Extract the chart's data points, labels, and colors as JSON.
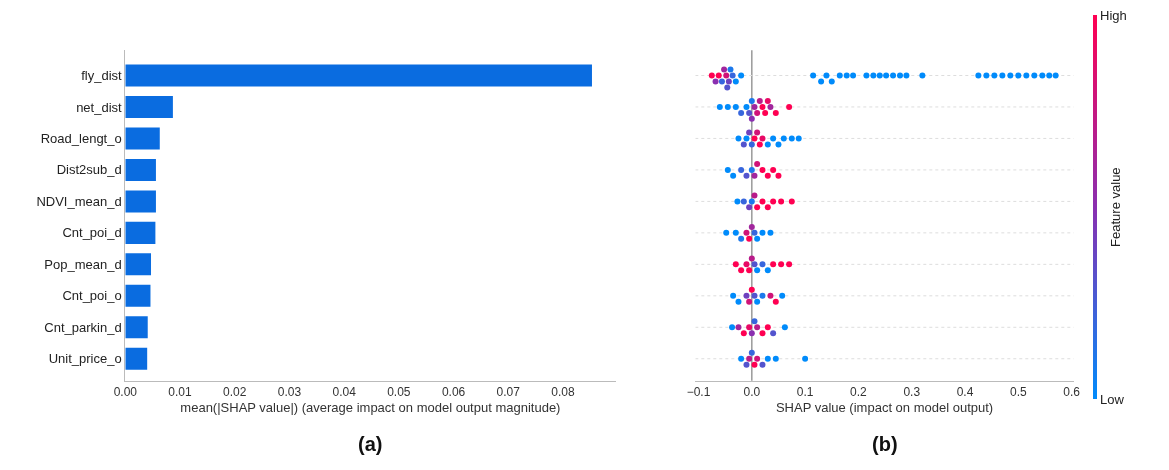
{
  "chart_data": [
    {
      "type": "bar",
      "orientation": "horizontal",
      "color": "#0a6ce0",
      "xlabel": "mean(|SHAP value|) (average impact on model output magnitude)",
      "annotations": [
        "(a)"
      ],
      "categories": [
        "fly_dist",
        "net_dist",
        "Road_lengt_o",
        "Dist2sub_d",
        "NDVI_mean_d",
        "Cnt_poi_d",
        "Pop_mean_d",
        "Cnt_poi_o",
        "Cnt_parkin_d",
        "Unit_price_o"
      ],
      "values": [
        0.0853,
        0.0087,
        0.0063,
        0.0056,
        0.0056,
        0.0055,
        0.0047,
        0.0046,
        0.0041,
        0.004
      ],
      "xlim": [
        0,
        0.0896
      ],
      "xticks": [
        {
          "value": 0,
          "label": "0.00"
        },
        {
          "value": 0.01,
          "label": "0.01"
        },
        {
          "value": 0.02,
          "label": "0.02"
        },
        {
          "value": 0.03,
          "label": "0.03"
        },
        {
          "value": 0.04,
          "label": "0.04"
        },
        {
          "value": 0.05,
          "label": "0.05"
        },
        {
          "value": 0.06,
          "label": "0.06"
        },
        {
          "value": 0.07,
          "label": "0.07"
        },
        {
          "value": 0.08,
          "label": "0.08"
        }
      ]
    },
    {
      "type": "scatter",
      "orientation": "horizontal",
      "xlabel": "SHAP value (impact on model output)",
      "annotations": [
        "(b)"
      ],
      "tick_labels": "x",
      "grid": "y",
      "clabel": "Feature value",
      "categories": [
        null,
        null,
        null,
        null,
        null,
        null,
        null,
        null,
        null,
        null
      ],
      "xlim": [
        -0.106,
        0.604
      ],
      "xticks": [
        {
          "value": -0.1,
          "label": "−0.1"
        },
        {
          "value": 0,
          "label": "0.0"
        },
        {
          "value": 0.1,
          "label": "0.1"
        },
        {
          "value": 0.2,
          "label": "0.2"
        },
        {
          "value": 0.3,
          "label": "0.3"
        },
        {
          "value": 0.4,
          "label": "0.4"
        },
        {
          "value": 0.5,
          "label": "0.5"
        },
        {
          "value": 0.6,
          "label": "0.6"
        }
      ],
      "clim": [
        0,
        1
      ],
      "cticks": [
        {
          "value": 0,
          "label": "Low"
        },
        {
          "value": 1,
          "label": "High"
        }
      ],
      "ref_lines": [
        {
          "axis": "x",
          "value": 0,
          "color": "#999999"
        }
      ],
      "series": [
        {
          "values": [
            -0.075,
            -0.06,
            -0.025,
            -0.045,
            -0.027,
            -0.048,
            -0.03,
            -0.035,
            -0.037,
            -0.02
          ],
          "colors": [
            "#ff0052",
            "#008bfb",
            "#008bfb",
            "#008bfb",
            "#008bfb",
            "#008bfb",
            "#ff0052",
            "#008bfb",
            "#008bfb",
            "#008bfb"
          ]
        },
        {
          "values": [
            -0.068,
            -0.045,
            -0.015,
            -0.035,
            -0.015,
            -0.03,
            -0.02,
            -0.025,
            -0.025,
            -0.01
          ],
          "colors": [
            "#8a2fb0",
            "#008bfb",
            "#5354ce",
            "#008bfb",
            "#3766dd",
            "#008bfb",
            "#ff0052",
            "#008bfb",
            "#a1269d",
            "#5354ce"
          ]
        },
        {
          "values": [
            -0.062,
            -0.03,
            -0.01,
            -0.02,
            -0.005,
            -0.02,
            -0.01,
            -0.01,
            -0.015,
            -0.005
          ],
          "colors": [
            "#ff0052",
            "#008bfb",
            "#008bfb",
            "#3766dd",
            "#6e41bf",
            "#1c79ec",
            "#e80965",
            "#6e41bf",
            "#ff0052",
            "#b91c8a"
          ]
        },
        {
          "values": [
            -0.056,
            -0.02,
            -0.005,
            -0.01,
            0,
            -0.01,
            -0.005,
            -0.005,
            -0.005,
            0
          ],
          "colors": [
            "#3766dd",
            "#3766dd",
            "#6e41bf",
            "#5354ce",
            "#1c79ec",
            "#d01378",
            "#ff0052",
            "#d01378",
            "#e80965",
            "#3766dd"
          ]
        },
        {
          "values": [
            -0.052,
            -0.01,
            0,
            0,
            0.005,
            -0.005,
            0,
            0,
            0,
            0.005
          ],
          "colors": [
            "#a1269d",
            "#008bfb",
            "#3766dd",
            "#1c79ec",
            "#b91c8a",
            "#ff0052",
            "#b91c8a",
            "#ff0052",
            "#8a2fb0",
            "#ff0052"
          ]
        },
        {
          "values": [
            -0.048,
            -0.005,
            0.005,
            0.005,
            0.01,
            0,
            0.005,
            0.005,
            0.005,
            0.01
          ],
          "colors": [
            "#d01378",
            "#5354ce",
            "#ff0052",
            "#a1269d",
            "#ff0052",
            "#a1269d",
            "#5354ce",
            "#5354ce",
            "#3766dd",
            "#d01378"
          ]
        },
        {
          "values": [
            -0.046,
            0,
            0.01,
            0.01,
            0.02,
            0.005,
            0.01,
            0.01,
            0.01,
            0.02
          ],
          "colors": [
            "#5354ce",
            "#1c79ec",
            "#d01378",
            "#d01378",
            "#ff0052",
            "#3766dd",
            "#008bfb",
            "#008bfb",
            "#b91c8a",
            "#5354ce"
          ]
        },
        {
          "values": [
            -0.043,
            0,
            0.015,
            0.02,
            0.03,
            0.01,
            0.02,
            0.02,
            0.02,
            0.03
          ],
          "colors": [
            "#6e41bf",
            "#8a2fb0",
            "#ff0052",
            "#ff0052",
            "#ff0052",
            "#008bfb",
            "#3766dd",
            "#1c79ec",
            "#ff0052",
            "#008bfb"
          ]
        },
        {
          "values": [
            -0.04,
            0.005,
            0.02,
            0.03,
            0.04,
            0.02,
            0.03,
            0.035,
            0.03,
            0.045
          ],
          "colors": [
            "#1c79ec",
            "#a1269d",
            "#e80965",
            "#ff0052",
            "#ff0052",
            "#008bfb",
            "#008bfb",
            "#d01378",
            "#ff0052",
            "#008bfb"
          ]
        },
        {
          "values": [
            -0.036,
            0.01,
            0.03,
            0.04,
            0.055,
            0.035,
            0.04,
            0.045,
            0.04,
            0.1
          ],
          "colors": [
            "#3766dd",
            "#d01378",
            "#008bfb",
            "#ff0052",
            "#ff0052",
            "#008bfb",
            "#ff0052",
            "#ff0052",
            "#5354ce",
            "#008bfb"
          ]
        },
        {
          "values": [
            -0.03,
            0.015,
            0.04,
            0.05,
            0.075,
            null,
            0.055,
            0.057,
            0.062,
            null
          ],
          "colors": [
            "#008bfb",
            "#b91c8a",
            "#008bfb",
            "#ff0052",
            "#ff0052",
            null,
            "#ff0052",
            "#008bfb",
            "#008bfb",
            null
          ]
        },
        {
          "values": [
            -0.02,
            0.02,
            0.05,
            null,
            null,
            null,
            0.07,
            null,
            null,
            null
          ],
          "colors": [
            "#008bfb",
            "#ff0052",
            "#008bfb",
            null,
            null,
            null,
            "#ff0052",
            null,
            null,
            null
          ]
        },
        {
          "values": [
            0.115,
            0.025,
            0.06,
            null,
            null,
            null,
            null,
            null,
            null,
            null
          ],
          "colors": [
            "#008bfb",
            "#ff0052",
            "#008bfb",
            null,
            null,
            null,
            null,
            null,
            null,
            null
          ]
        },
        {
          "values": [
            0.14,
            0.03,
            0.075,
            null,
            null,
            null,
            null,
            null,
            null,
            null
          ],
          "colors": [
            "#008bfb",
            "#e80965",
            "#008bfb",
            null,
            null,
            null,
            null,
            null,
            null,
            null
          ]
        },
        {
          "values": [
            0.165,
            0.035,
            0.088,
            null,
            null,
            null,
            null,
            null,
            null,
            null
          ],
          "colors": [
            "#008bfb",
            "#a1269d",
            "#008bfb",
            null,
            null,
            null,
            null,
            null,
            null,
            null
          ]
        },
        {
          "values": [
            0.19,
            0.045,
            null,
            null,
            null,
            null,
            null,
            null,
            null,
            null
          ],
          "colors": [
            "#008bfb",
            "#ff0052",
            null,
            null,
            null,
            null,
            null,
            null,
            null,
            null
          ]
        },
        {
          "values": [
            0.215,
            0.07,
            null,
            null,
            null,
            null,
            null,
            null,
            null,
            null
          ],
          "colors": [
            "#008bfb",
            "#ff0052",
            null,
            null,
            null,
            null,
            null,
            null,
            null,
            null
          ]
        },
        {
          "values": [
            0.24,
            null,
            null,
            null,
            null,
            null,
            null,
            null,
            null,
            null
          ],
          "colors": [
            "#008bfb",
            null,
            null,
            null,
            null,
            null,
            null,
            null,
            null,
            null
          ]
        },
        {
          "values": [
            0.265,
            null,
            null,
            null,
            null,
            null,
            null,
            null,
            null,
            null
          ],
          "colors": [
            "#008bfb",
            null,
            null,
            null,
            null,
            null,
            null,
            null,
            null,
            null
          ]
        },
        {
          "values": [
            0.29,
            null,
            null,
            null,
            null,
            null,
            null,
            null,
            null,
            null
          ],
          "colors": [
            "#008bfb",
            null,
            null,
            null,
            null,
            null,
            null,
            null,
            null,
            null
          ]
        },
        {
          "values": [
            0.32,
            null,
            null,
            null,
            null,
            null,
            null,
            null,
            null,
            null
          ],
          "colors": [
            "#008bfb",
            null,
            null,
            null,
            null,
            null,
            null,
            null,
            null,
            null
          ]
        },
        {
          "values": [
            0.425,
            null,
            null,
            null,
            null,
            null,
            null,
            null,
            null,
            null
          ],
          "colors": [
            "#008bfb",
            null,
            null,
            null,
            null,
            null,
            null,
            null,
            null,
            null
          ]
        },
        {
          "values": [
            0.455,
            null,
            null,
            null,
            null,
            null,
            null,
            null,
            null,
            null
          ],
          "colors": [
            "#008bfb",
            null,
            null,
            null,
            null,
            null,
            null,
            null,
            null,
            null
          ]
        },
        {
          "values": [
            0.485,
            null,
            null,
            null,
            null,
            null,
            null,
            null,
            null,
            null
          ],
          "colors": [
            "#008bfb",
            null,
            null,
            null,
            null,
            null,
            null,
            null,
            null,
            null
          ]
        },
        {
          "values": [
            0.515,
            null,
            null,
            null,
            null,
            null,
            null,
            null,
            null,
            null
          ],
          "colors": [
            "#008bfb",
            null,
            null,
            null,
            null,
            null,
            null,
            null,
            null,
            null
          ]
        },
        {
          "values": [
            0.545,
            null,
            null,
            null,
            null,
            null,
            null,
            null,
            null,
            null
          ],
          "colors": [
            "#008bfb",
            null,
            null,
            null,
            null,
            null,
            null,
            null,
            null,
            null
          ]
        },
        {
          "values": [
            0.57,
            null,
            null,
            null,
            null,
            null,
            null,
            null,
            null,
            null
          ],
          "colors": [
            "#008bfb",
            null,
            null,
            null,
            null,
            null,
            null,
            null,
            null,
            null
          ]
        },
        {
          "values": [
            0.13,
            null,
            null,
            null,
            null,
            null,
            null,
            null,
            null,
            null
          ],
          "colors": [
            "#008bfb",
            null,
            null,
            null,
            null,
            null,
            null,
            null,
            null,
            null
          ]
        },
        {
          "values": [
            0.15,
            null,
            null,
            null,
            null,
            null,
            null,
            null,
            null,
            null
          ],
          "colors": [
            "#008bfb",
            null,
            null,
            null,
            null,
            null,
            null,
            null,
            null,
            null
          ]
        },
        {
          "values": [
            0.178,
            null,
            null,
            null,
            null,
            null,
            null,
            null,
            null,
            null
          ],
          "colors": [
            "#008bfb",
            null,
            null,
            null,
            null,
            null,
            null,
            null,
            null,
            null
          ]
        },
        {
          "values": [
            0.228,
            null,
            null,
            null,
            null,
            null,
            null,
            null,
            null,
            null
          ],
          "colors": [
            "#008bfb",
            null,
            null,
            null,
            null,
            null,
            null,
            null,
            null,
            null
          ]
        },
        {
          "values": [
            0.252,
            null,
            null,
            null,
            null,
            null,
            null,
            null,
            null,
            null
          ],
          "colors": [
            "#008bfb",
            null,
            null,
            null,
            null,
            null,
            null,
            null,
            null,
            null
          ]
        },
        {
          "values": [
            0.278,
            null,
            null,
            null,
            null,
            null,
            null,
            null,
            null,
            null
          ],
          "colors": [
            "#008bfb",
            null,
            null,
            null,
            null,
            null,
            null,
            null,
            null,
            null
          ]
        },
        {
          "values": [
            0.44,
            null,
            null,
            null,
            null,
            null,
            null,
            null,
            null,
            null
          ],
          "colors": [
            "#008bfb",
            null,
            null,
            null,
            null,
            null,
            null,
            null,
            null,
            null
          ]
        },
        {
          "values": [
            0.47,
            null,
            null,
            null,
            null,
            null,
            null,
            null,
            null,
            null
          ],
          "colors": [
            "#008bfb",
            null,
            null,
            null,
            null,
            null,
            null,
            null,
            null,
            null
          ]
        },
        {
          "values": [
            0.5,
            null,
            null,
            null,
            null,
            null,
            null,
            null,
            null,
            null
          ],
          "colors": [
            "#008bfb",
            null,
            null,
            null,
            null,
            null,
            null,
            null,
            null,
            null
          ]
        },
        {
          "values": [
            0.53,
            null,
            null,
            null,
            null,
            null,
            null,
            null,
            null,
            null
          ],
          "colors": [
            "#008bfb",
            null,
            null,
            null,
            null,
            null,
            null,
            null,
            null,
            null
          ]
        },
        {
          "values": [
            0.558,
            null,
            null,
            null,
            null,
            null,
            null,
            null,
            null,
            null
          ],
          "colors": [
            "#008bfb",
            null,
            null,
            null,
            null,
            null,
            null,
            null,
            null,
            null
          ]
        }
      ]
    }
  ]
}
